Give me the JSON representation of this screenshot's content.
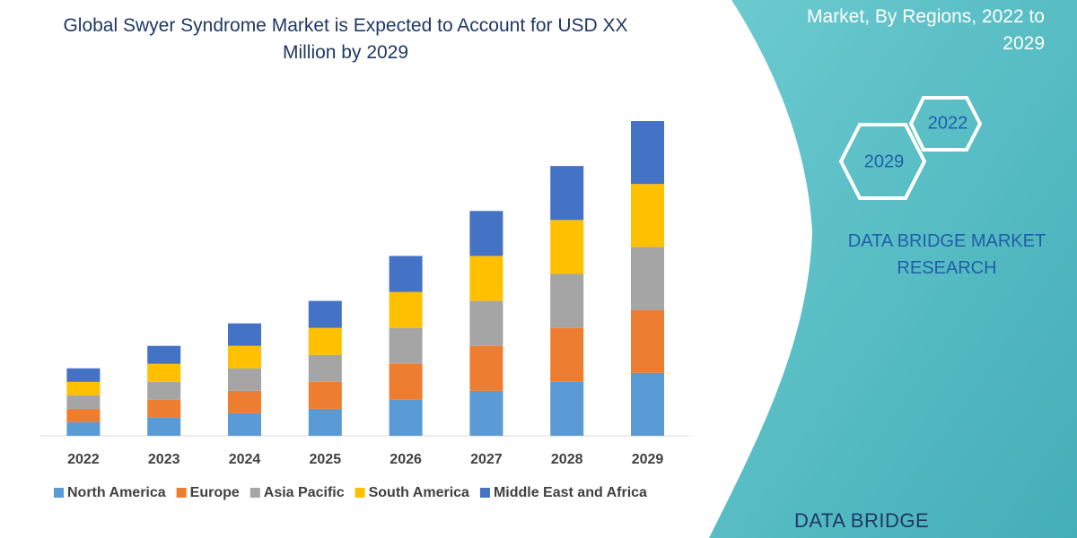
{
  "chart_data": {
    "type": "stacked-bar",
    "title": "Global Swyer Syndrome Market is Expected to Account for USD XX Million by 2029",
    "categories": [
      "2022",
      "2023",
      "2024",
      "2025",
      "2026",
      "2027",
      "2028",
      "2029"
    ],
    "series": [
      {
        "name": "North America",
        "color": "#5b9bd5",
        "values": [
          15,
          20,
          25,
          30,
          40,
          50,
          60,
          70
        ]
      },
      {
        "name": "Europe",
        "color": "#ed7d31",
        "values": [
          15,
          20,
          25,
          30,
          40,
          50,
          60,
          70
        ]
      },
      {
        "name": "Asia Pacific",
        "color": "#a5a5a5",
        "values": [
          15,
          20,
          25,
          30,
          40,
          50,
          60,
          70
        ]
      },
      {
        "name": "South America",
        "color": "#ffc000",
        "values": [
          15,
          20,
          25,
          30,
          40,
          50,
          60,
          70
        ]
      },
      {
        "name": "Middle East and Africa",
        "color": "#4472c4",
        "values": [
          15,
          20,
          25,
          30,
          40,
          50,
          60,
          70
        ]
      }
    ]
  },
  "panel": {
    "heading": "Market, By Regions, 2022 to 2029",
    "hexagons": [
      "2022",
      "2029"
    ],
    "brand": "DATA BRIDGE MARKET RESEARCH",
    "logo": "DATA BRIDGE"
  }
}
